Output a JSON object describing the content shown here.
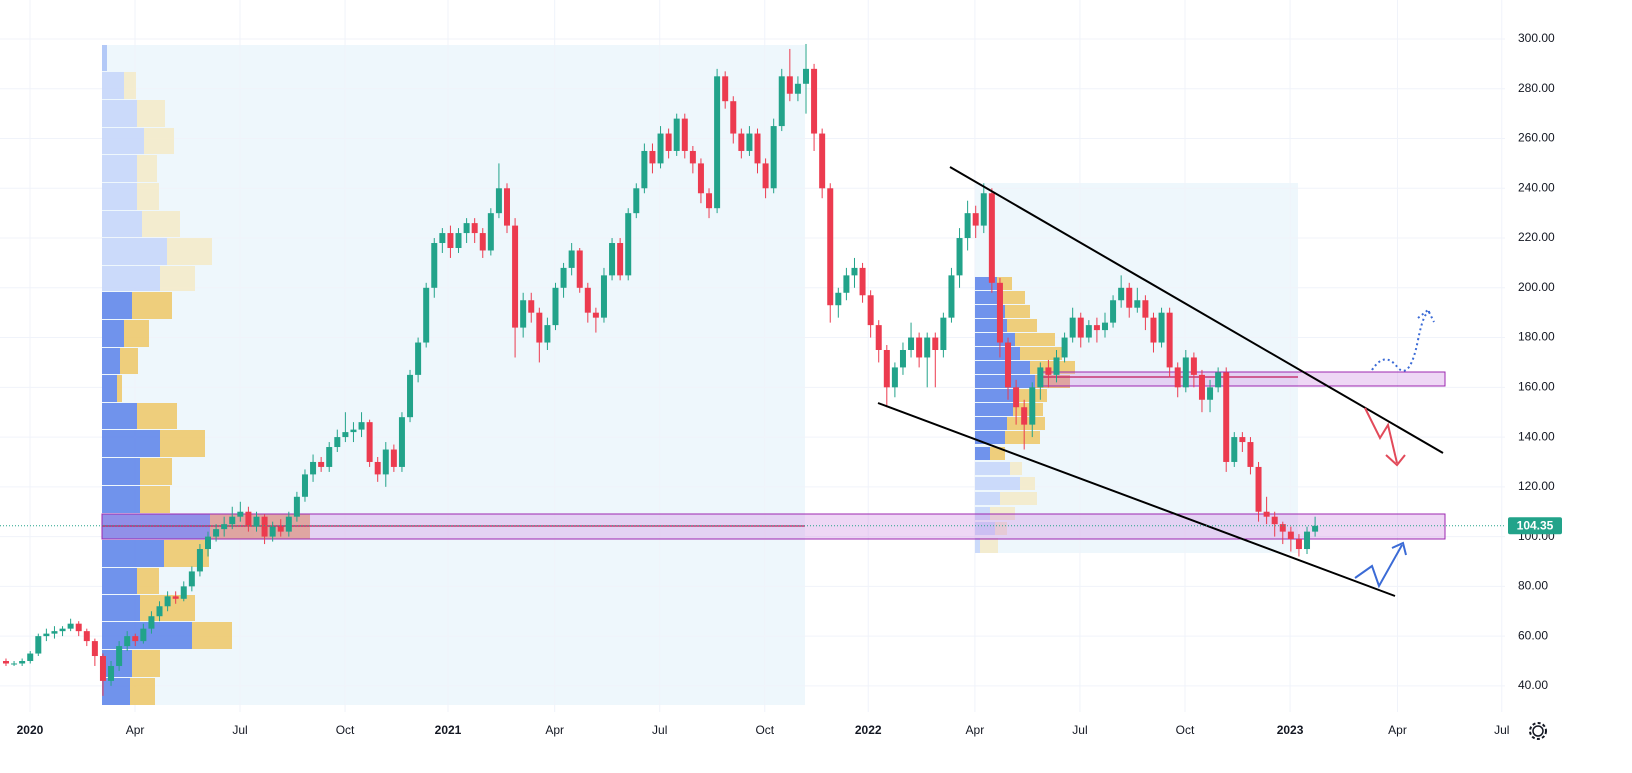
{
  "chart_data": {
    "type": "candlestick",
    "up_color": "#22a38a",
    "down_color": "#ec3b4f",
    "xlim": [
      -0.74,
      185.5
    ],
    "ylim": [
      36,
      304.5
    ],
    "yticks": [
      {
        "value": 40,
        "label": "40.00"
      },
      {
        "value": 60,
        "label": "60.00"
      },
      {
        "value": 80,
        "label": "80.00"
      },
      {
        "value": 100,
        "label": "100.00"
      },
      {
        "value": 120,
        "label": "120.00"
      },
      {
        "value": 140,
        "label": "140.00"
      },
      {
        "value": 160,
        "label": "160.00"
      },
      {
        "value": 180,
        "label": "180.00"
      },
      {
        "value": 200,
        "label": "200.00"
      },
      {
        "value": 220,
        "label": "220.00"
      },
      {
        "value": 240,
        "label": "240.00"
      },
      {
        "value": 260,
        "label": "260.00"
      },
      {
        "value": 280,
        "label": "280.00"
      },
      {
        "value": 300,
        "label": "300.00"
      }
    ],
    "xticks": [
      {
        "value": 2.97,
        "label": "2020"
      },
      {
        "value": 15.97,
        "label": "Apr"
      },
      {
        "value": 28.96,
        "label": "Jul"
      },
      {
        "value": 41.96,
        "label": "Oct"
      },
      {
        "value": 54.7,
        "label": "2021"
      },
      {
        "value": 67.9,
        "label": "Apr"
      },
      {
        "value": 80.9,
        "label": "Jul"
      },
      {
        "value": 93.9,
        "label": "Oct"
      },
      {
        "value": 106.7,
        "label": "2022"
      },
      {
        "value": 119.9,
        "label": "Apr"
      },
      {
        "value": 132.9,
        "label": "Jul"
      },
      {
        "value": 145.9,
        "label": "Oct"
      },
      {
        "value": 158.9,
        "label": "2023"
      },
      {
        "value": 172.2,
        "label": "Apr"
      },
      {
        "value": 185.1,
        "label": "Jul"
      }
    ],
    "ohlc": [
      [
        50,
        51,
        48,
        49
      ],
      [
        49,
        50,
        48,
        49
      ],
      [
        49,
        51,
        48,
        50
      ],
      [
        50,
        54,
        49,
        53
      ],
      [
        53,
        61,
        52,
        60
      ],
      [
        60,
        63,
        58,
        61
      ],
      [
        61,
        64,
        59,
        62
      ],
      [
        62,
        64,
        60,
        63
      ],
      [
        63,
        67,
        62,
        65
      ],
      [
        65,
        66,
        60,
        62
      ],
      [
        62,
        63,
        56,
        58
      ],
      [
        58,
        59,
        48,
        52
      ],
      [
        52,
        53,
        36,
        42
      ],
      [
        42,
        50,
        40,
        48
      ],
      [
        48,
        58,
        46,
        56
      ],
      [
        56,
        62,
        54,
        60
      ],
      [
        60,
        61,
        56,
        58
      ],
      [
        58,
        65,
        57,
        63
      ],
      [
        63,
        70,
        61,
        68
      ],
      [
        68,
        74,
        66,
        72
      ],
      [
        72,
        78,
        70,
        76
      ],
      [
        76,
        78,
        73,
        75
      ],
      [
        75,
        82,
        74,
        80
      ],
      [
        80,
        88,
        78,
        86
      ],
      [
        86,
        97,
        84,
        95
      ],
      [
        95,
        102,
        92,
        100
      ],
      [
        100,
        105,
        98,
        103
      ],
      [
        103,
        108,
        100,
        105
      ],
      [
        105,
        112,
        103,
        108
      ],
      [
        108,
        114,
        106,
        110
      ],
      [
        110,
        112,
        102,
        104
      ],
      [
        104,
        110,
        102,
        108
      ],
      [
        108,
        109,
        97,
        100
      ],
      [
        100,
        106,
        98,
        104
      ],
      [
        104,
        107,
        100,
        102
      ],
      [
        102,
        110,
        100,
        108
      ],
      [
        108,
        118,
        106,
        116
      ],
      [
        116,
        127,
        114,
        125
      ],
      [
        125,
        133,
        122,
        130
      ],
      [
        130,
        132,
        126,
        128
      ],
      [
        128,
        138,
        126,
        136
      ],
      [
        136,
        143,
        134,
        140
      ],
      [
        140,
        150,
        138,
        142
      ],
      [
        142,
        146,
        138,
        143
      ],
      [
        143,
        150,
        140,
        146
      ],
      [
        146,
        147,
        128,
        130
      ],
      [
        130,
        132,
        122,
        125
      ],
      [
        125,
        138,
        120,
        135
      ],
      [
        135,
        137,
        126,
        128
      ],
      [
        128,
        150,
        126,
        148
      ],
      [
        148,
        167,
        146,
        165
      ],
      [
        165,
        180,
        162,
        178
      ],
      [
        178,
        202,
        176,
        200
      ],
      [
        200,
        220,
        196,
        218
      ],
      [
        218,
        224,
        214,
        222
      ],
      [
        222,
        225,
        212,
        216
      ],
      [
        216,
        224,
        214,
        222
      ],
      [
        222,
        228,
        218,
        226
      ],
      [
        226,
        228,
        218,
        222
      ],
      [
        222,
        224,
        212,
        215
      ],
      [
        215,
        232,
        213,
        230
      ],
      [
        230,
        250,
        228,
        240
      ],
      [
        240,
        242,
        222,
        225
      ],
      [
        225,
        228,
        172,
        184
      ],
      [
        184,
        198,
        180,
        195
      ],
      [
        195,
        198,
        186,
        190
      ],
      [
        190,
        192,
        170,
        178
      ],
      [
        178,
        188,
        175,
        185
      ],
      [
        185,
        202,
        183,
        200
      ],
      [
        200,
        210,
        196,
        208
      ],
      [
        208,
        218,
        205,
        215
      ],
      [
        215,
        216,
        198,
        200
      ],
      [
        200,
        202,
        186,
        190
      ],
      [
        190,
        192,
        182,
        188
      ],
      [
        188,
        208,
        186,
        205
      ],
      [
        205,
        220,
        203,
        218
      ],
      [
        218,
        220,
        203,
        205
      ],
      [
        205,
        232,
        203,
        230
      ],
      [
        230,
        242,
        228,
        240
      ],
      [
        240,
        258,
        238,
        255
      ],
      [
        255,
        258,
        246,
        250
      ],
      [
        250,
        265,
        248,
        262
      ],
      [
        262,
        264,
        252,
        255
      ],
      [
        255,
        270,
        253,
        268
      ],
      [
        268,
        270,
        252,
        255
      ],
      [
        255,
        257,
        246,
        250
      ],
      [
        250,
        252,
        234,
        238
      ],
      [
        238,
        240,
        228,
        232
      ],
      [
        232,
        288,
        230,
        285
      ],
      [
        285,
        287,
        272,
        275
      ],
      [
        275,
        277,
        258,
        262
      ],
      [
        262,
        264,
        252,
        255
      ],
      [
        255,
        265,
        253,
        262
      ],
      [
        262,
        264,
        246,
        250
      ],
      [
        250,
        252,
        236,
        240
      ],
      [
        240,
        268,
        238,
        265
      ],
      [
        265,
        288,
        263,
        285
      ],
      [
        285,
        296,
        275,
        278
      ],
      [
        278,
        285,
        275,
        282
      ],
      [
        282,
        298,
        270,
        288
      ],
      [
        288,
        290,
        255,
        262
      ],
      [
        262,
        264,
        236,
        240
      ],
      [
        240,
        242,
        186,
        193
      ],
      [
        193,
        200,
        188,
        198
      ],
      [
        198,
        208,
        195,
        205
      ],
      [
        205,
        212,
        200,
        208
      ],
      [
        208,
        210,
        194,
        197
      ],
      [
        197,
        199,
        180,
        185
      ],
      [
        185,
        187,
        170,
        175
      ],
      [
        175,
        177,
        152,
        160
      ],
      [
        160,
        170,
        156,
        168
      ],
      [
        168,
        178,
        165,
        175
      ],
      [
        175,
        186,
        172,
        180
      ],
      [
        180,
        182,
        168,
        172
      ],
      [
        172,
        182,
        160,
        180
      ],
      [
        180,
        182,
        160,
        175
      ],
      [
        175,
        190,
        172,
        188
      ],
      [
        188,
        208,
        186,
        205
      ],
      [
        205,
        224,
        200,
        220
      ],
      [
        220,
        235,
        215,
        230
      ],
      [
        230,
        233,
        220,
        225
      ],
      [
        225,
        242,
        222,
        238
      ],
      [
        238,
        240,
        198,
        202
      ],
      [
        202,
        204,
        172,
        178
      ],
      [
        178,
        180,
        155,
        160
      ],
      [
        160,
        163,
        145,
        152
      ],
      [
        152,
        155,
        135,
        145
      ],
      [
        145,
        162,
        140,
        160
      ],
      [
        160,
        170,
        155,
        168
      ],
      [
        168,
        171,
        160,
        165
      ],
      [
        165,
        175,
        162,
        172
      ],
      [
        172,
        182,
        170,
        180
      ],
      [
        180,
        192,
        178,
        188
      ],
      [
        188,
        190,
        176,
        180
      ],
      [
        180,
        187,
        178,
        185
      ],
      [
        185,
        188,
        178,
        183
      ],
      [
        183,
        190,
        180,
        186
      ],
      [
        186,
        197,
        184,
        195
      ],
      [
        195,
        205,
        192,
        200
      ],
      [
        200,
        202,
        188,
        192
      ],
      [
        192,
        200,
        190,
        195
      ],
      [
        195,
        197,
        183,
        188
      ],
      [
        188,
        190,
        174,
        178
      ],
      [
        178,
        192,
        176,
        190
      ],
      [
        190,
        192,
        164,
        168
      ],
      [
        168,
        170,
        156,
        160
      ],
      [
        160,
        175,
        158,
        172
      ],
      [
        172,
        174,
        160,
        165
      ],
      [
        165,
        167,
        150,
        155
      ],
      [
        155,
        163,
        150,
        160
      ],
      [
        160,
        168,
        158,
        166
      ],
      [
        166,
        168,
        126,
        130
      ],
      [
        130,
        142,
        128,
        140
      ],
      [
        140,
        142,
        134,
        138
      ],
      [
        138,
        140,
        125,
        128
      ],
      [
        128,
        130,
        106,
        110
      ],
      [
        110,
        116,
        105,
        108
      ],
      [
        108,
        110,
        100,
        105
      ],
      [
        105,
        106,
        97,
        102
      ],
      [
        102,
        104,
        94,
        99
      ],
      [
        99,
        101,
        92,
        95
      ],
      [
        95,
        104,
        93,
        102
      ],
      [
        102,
        108,
        100,
        104.35
      ]
    ]
  }
}
